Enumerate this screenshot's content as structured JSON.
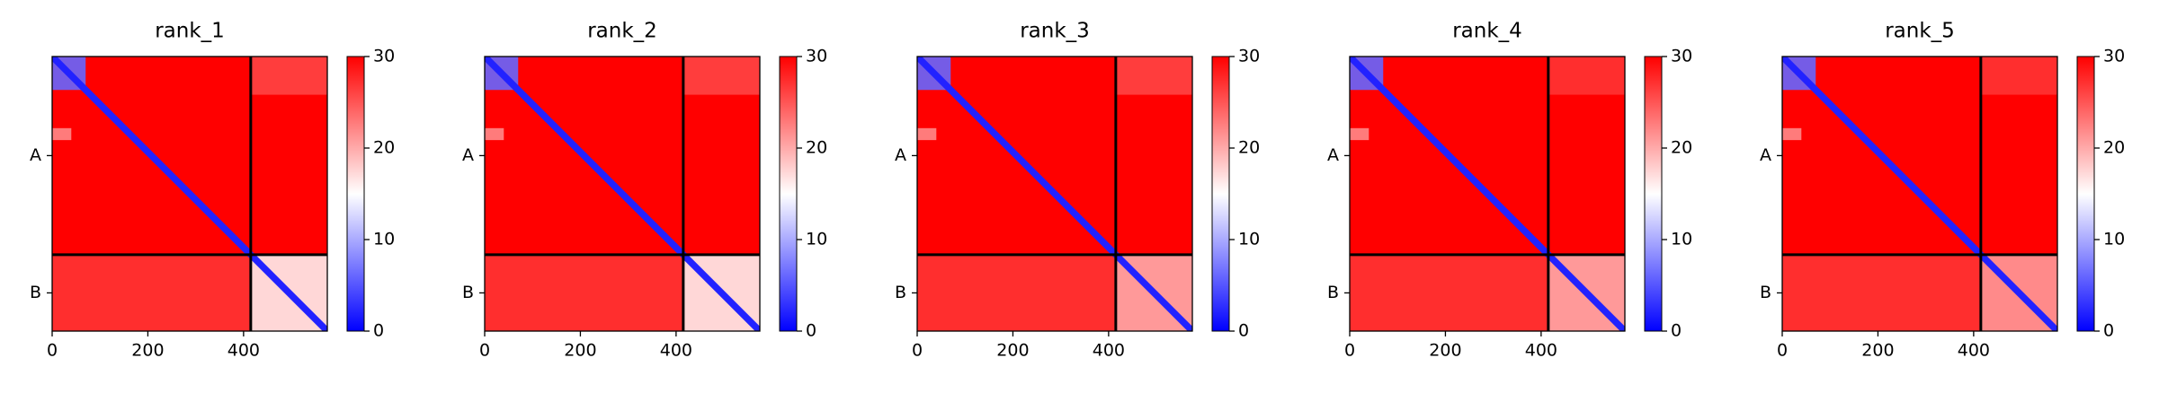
{
  "chart_data": [
    {
      "type": "heatmap",
      "title": "rank_1",
      "xlim": [
        0,
        575
      ],
      "xticks": [
        0,
        200,
        400
      ],
      "ylim": [
        575,
        0
      ],
      "yticks": [
        {
          "value": 207.5,
          "label": "A"
        },
        {
          "value": 495,
          "label": "B"
        }
      ],
      "clim": [
        0,
        30
      ],
      "cticks": [
        0,
        10,
        20,
        30
      ],
      "cmap": [
        "#0000ff",
        "#ffffff",
        "#ff0000"
      ],
      "background_value": 30,
      "boundaries": [
        415
      ],
      "diagonal": {
        "value": 2,
        "width": 14
      },
      "cells": [
        {
          "x": [
            0,
            70
          ],
          "y": [
            0,
            70
          ],
          "value": 6
        },
        {
          "x": [
            0,
            40
          ],
          "y": [
            150,
            175
          ],
          "value": 22
        },
        {
          "x": [
            415,
            575
          ],
          "y": [
            0,
            80
          ],
          "value": 26
        },
        {
          "x": [
            0,
            415
          ],
          "y": [
            415,
            575
          ],
          "value": 27
        },
        {
          "x": [
            415,
            575
          ],
          "y": [
            415,
            575
          ],
          "value": 16
        }
      ]
    },
    {
      "type": "heatmap",
      "title": "rank_2",
      "xlim": [
        0,
        575
      ],
      "xticks": [
        0,
        200,
        400
      ],
      "ylim": [
        575,
        0
      ],
      "yticks": [
        {
          "value": 207.5,
          "label": "A"
        },
        {
          "value": 495,
          "label": "B"
        }
      ],
      "clim": [
        0,
        30
      ],
      "cticks": [
        0,
        10,
        20,
        30
      ],
      "cmap": [
        "#0000ff",
        "#ffffff",
        "#ff0000"
      ],
      "background_value": 30,
      "boundaries": [
        415
      ],
      "diagonal": {
        "value": 2,
        "width": 14
      },
      "cells": [
        {
          "x": [
            0,
            70
          ],
          "y": [
            0,
            70
          ],
          "value": 6
        },
        {
          "x": [
            0,
            40
          ],
          "y": [
            150,
            175
          ],
          "value": 22
        },
        {
          "x": [
            415,
            575
          ],
          "y": [
            0,
            80
          ],
          "value": 26
        },
        {
          "x": [
            0,
            415
          ],
          "y": [
            415,
            575
          ],
          "value": 27
        },
        {
          "x": [
            415,
            575
          ],
          "y": [
            415,
            575
          ],
          "value": 16
        }
      ]
    },
    {
      "type": "heatmap",
      "title": "rank_3",
      "xlim": [
        0,
        575
      ],
      "xticks": [
        0,
        200,
        400
      ],
      "ylim": [
        575,
        0
      ],
      "yticks": [
        {
          "value": 207.5,
          "label": "A"
        },
        {
          "value": 495,
          "label": "B"
        }
      ],
      "clim": [
        0,
        30
      ],
      "cticks": [
        0,
        10,
        20,
        30
      ],
      "cmap": [
        "#0000ff",
        "#ffffff",
        "#ff0000"
      ],
      "background_value": 30,
      "boundaries": [
        415
      ],
      "diagonal": {
        "value": 2,
        "width": 14
      },
      "cells": [
        {
          "x": [
            0,
            70
          ],
          "y": [
            0,
            70
          ],
          "value": 6
        },
        {
          "x": [
            0,
            40
          ],
          "y": [
            150,
            175
          ],
          "value": 22
        },
        {
          "x": [
            415,
            575
          ],
          "y": [
            0,
            80
          ],
          "value": 26
        },
        {
          "x": [
            0,
            415
          ],
          "y": [
            415,
            575
          ],
          "value": 27
        },
        {
          "x": [
            415,
            575
          ],
          "y": [
            415,
            575
          ],
          "value": 20
        }
      ]
    },
    {
      "type": "heatmap",
      "title": "rank_4",
      "xlim": [
        0,
        575
      ],
      "xticks": [
        0,
        200,
        400
      ],
      "ylim": [
        575,
        0
      ],
      "yticks": [
        {
          "value": 207.5,
          "label": "A"
        },
        {
          "value": 495,
          "label": "B"
        }
      ],
      "clim": [
        0,
        30
      ],
      "cticks": [
        0,
        10,
        20,
        30
      ],
      "cmap": [
        "#0000ff",
        "#ffffff",
        "#ff0000"
      ],
      "background_value": 30,
      "boundaries": [
        415
      ],
      "diagonal": {
        "value": 2,
        "width": 14
      },
      "cells": [
        {
          "x": [
            0,
            70
          ],
          "y": [
            0,
            70
          ],
          "value": 6
        },
        {
          "x": [
            0,
            40
          ],
          "y": [
            150,
            175
          ],
          "value": 22
        },
        {
          "x": [
            415,
            575
          ],
          "y": [
            0,
            80
          ],
          "value": 27
        },
        {
          "x": [
            0,
            415
          ],
          "y": [
            415,
            575
          ],
          "value": 27
        },
        {
          "x": [
            415,
            575
          ],
          "y": [
            415,
            575
          ],
          "value": 20
        }
      ]
    },
    {
      "type": "heatmap",
      "title": "rank_5",
      "xlim": [
        0,
        575
      ],
      "xticks": [
        0,
        200,
        400
      ],
      "ylim": [
        575,
        0
      ],
      "yticks": [
        {
          "value": 207.5,
          "label": "A"
        },
        {
          "value": 495,
          "label": "B"
        }
      ],
      "clim": [
        0,
        30
      ],
      "cticks": [
        0,
        10,
        20,
        30
      ],
      "cmap": [
        "#0000ff",
        "#ffffff",
        "#ff0000"
      ],
      "background_value": 30,
      "boundaries": [
        415
      ],
      "diagonal": {
        "value": 2,
        "width": 14
      },
      "cells": [
        {
          "x": [
            0,
            70
          ],
          "y": [
            0,
            70
          ],
          "value": 6
        },
        {
          "x": [
            0,
            40
          ],
          "y": [
            150,
            175
          ],
          "value": 22
        },
        {
          "x": [
            415,
            575
          ],
          "y": [
            0,
            80
          ],
          "value": 27
        },
        {
          "x": [
            0,
            415
          ],
          "y": [
            415,
            575
          ],
          "value": 27
        },
        {
          "x": [
            415,
            575
          ],
          "y": [
            415,
            575
          ],
          "value": 21
        }
      ]
    }
  ]
}
